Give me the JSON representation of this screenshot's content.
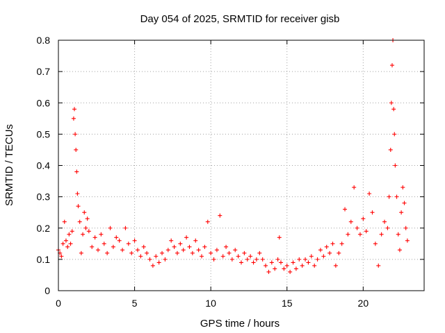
{
  "chart_data": {
    "type": "scatter",
    "title": "Day 054 of 2025, SRMTID for receiver gisb",
    "xlabel": "GPS time / hours",
    "ylabel": "SRMTID / TECUs",
    "xlim": [
      0,
      24
    ],
    "ylim": [
      0,
      0.8
    ],
    "x_ticks": [
      0,
      5,
      10,
      15,
      20
    ],
    "x_tick_labels": [
      "0",
      "5",
      "10",
      "15",
      "20"
    ],
    "y_ticks": [
      0,
      0.1,
      0.2,
      0.3,
      0.4,
      0.5,
      0.6,
      0.7,
      0.8
    ],
    "y_tick_labels": [
      "0",
      "0.1",
      "0.2",
      "0.3",
      "0.4",
      "0.5",
      "0.6",
      "0.7",
      "0.8"
    ],
    "grid": true,
    "marker": "plus",
    "color": "#ff0000",
    "series": [
      {
        "name": "SRMTID",
        "points": [
          [
            0.0,
            0.13
          ],
          [
            0.1,
            0.12
          ],
          [
            0.2,
            0.11
          ],
          [
            0.3,
            0.15
          ],
          [
            0.4,
            0.22
          ],
          [
            0.5,
            0.16
          ],
          [
            0.6,
            0.14
          ],
          [
            0.7,
            0.18
          ],
          [
            0.8,
            0.15
          ],
          [
            0.9,
            0.19
          ],
          [
            1.0,
            0.55
          ],
          [
            1.05,
            0.58
          ],
          [
            1.1,
            0.5
          ],
          [
            1.15,
            0.45
          ],
          [
            1.2,
            0.38
          ],
          [
            1.25,
            0.31
          ],
          [
            1.3,
            0.27
          ],
          [
            1.4,
            0.22
          ],
          [
            1.5,
            0.12
          ],
          [
            1.6,
            0.18
          ],
          [
            1.7,
            0.25
          ],
          [
            1.8,
            0.2
          ],
          [
            1.9,
            0.23
          ],
          [
            2.0,
            0.19
          ],
          [
            2.2,
            0.14
          ],
          [
            2.4,
            0.17
          ],
          [
            2.6,
            0.13
          ],
          [
            2.8,
            0.18
          ],
          [
            3.0,
            0.15
          ],
          [
            3.2,
            0.12
          ],
          [
            3.4,
            0.2
          ],
          [
            3.6,
            0.14
          ],
          [
            3.8,
            0.17
          ],
          [
            4.0,
            0.16
          ],
          [
            4.2,
            0.13
          ],
          [
            4.4,
            0.2
          ],
          [
            4.6,
            0.15
          ],
          [
            4.8,
            0.12
          ],
          [
            5.0,
            0.16
          ],
          [
            5.2,
            0.13
          ],
          [
            5.4,
            0.11
          ],
          [
            5.6,
            0.14
          ],
          [
            5.8,
            0.12
          ],
          [
            6.0,
            0.1
          ],
          [
            6.2,
            0.08
          ],
          [
            6.4,
            0.11
          ],
          [
            6.6,
            0.09
          ],
          [
            6.8,
            0.12
          ],
          [
            7.0,
            0.1
          ],
          [
            7.2,
            0.13
          ],
          [
            7.4,
            0.16
          ],
          [
            7.6,
            0.14
          ],
          [
            7.8,
            0.12
          ],
          [
            8.0,
            0.15
          ],
          [
            8.2,
            0.13
          ],
          [
            8.4,
            0.17
          ],
          [
            8.6,
            0.14
          ],
          [
            8.8,
            0.12
          ],
          [
            9.0,
            0.16
          ],
          [
            9.2,
            0.13
          ],
          [
            9.4,
            0.11
          ],
          [
            9.6,
            0.14
          ],
          [
            9.8,
            0.22
          ],
          [
            10.0,
            0.12
          ],
          [
            10.2,
            0.1
          ],
          [
            10.4,
            0.13
          ],
          [
            10.6,
            0.24
          ],
          [
            10.8,
            0.11
          ],
          [
            11.0,
            0.14
          ],
          [
            11.2,
            0.12
          ],
          [
            11.4,
            0.1
          ],
          [
            11.6,
            0.13
          ],
          [
            11.8,
            0.11
          ],
          [
            12.0,
            0.09
          ],
          [
            12.2,
            0.12
          ],
          [
            12.4,
            0.1
          ],
          [
            12.6,
            0.11
          ],
          [
            12.8,
            0.09
          ],
          [
            13.0,
            0.1
          ],
          [
            13.2,
            0.12
          ],
          [
            13.4,
            0.1
          ],
          [
            13.6,
            0.08
          ],
          [
            13.8,
            0.06
          ],
          [
            14.0,
            0.09
          ],
          [
            14.2,
            0.07
          ],
          [
            14.4,
            0.1
          ],
          [
            14.5,
            0.17
          ],
          [
            14.6,
            0.09
          ],
          [
            14.8,
            0.07
          ],
          [
            15.0,
            0.08
          ],
          [
            15.2,
            0.06
          ],
          [
            15.4,
            0.09
          ],
          [
            15.6,
            0.07
          ],
          [
            15.8,
            0.1
          ],
          [
            16.0,
            0.08
          ],
          [
            16.2,
            0.1
          ],
          [
            16.4,
            0.09
          ],
          [
            16.6,
            0.11
          ],
          [
            16.8,
            0.08
          ],
          [
            17.0,
            0.1
          ],
          [
            17.2,
            0.13
          ],
          [
            17.4,
            0.11
          ],
          [
            17.6,
            0.14
          ],
          [
            17.8,
            0.12
          ],
          [
            18.0,
            0.15
          ],
          [
            18.2,
            0.08
          ],
          [
            18.4,
            0.12
          ],
          [
            18.6,
            0.15
          ],
          [
            18.8,
            0.26
          ],
          [
            19.0,
            0.18
          ],
          [
            19.2,
            0.22
          ],
          [
            19.4,
            0.33
          ],
          [
            19.6,
            0.2
          ],
          [
            19.8,
            0.18
          ],
          [
            20.0,
            0.23
          ],
          [
            20.2,
            0.19
          ],
          [
            20.4,
            0.31
          ],
          [
            20.6,
            0.25
          ],
          [
            20.8,
            0.15
          ],
          [
            21.0,
            0.08
          ],
          [
            21.2,
            0.18
          ],
          [
            21.4,
            0.22
          ],
          [
            21.6,
            0.2
          ],
          [
            21.7,
            0.3
          ],
          [
            21.8,
            0.45
          ],
          [
            21.85,
            0.6
          ],
          [
            21.9,
            0.72
          ],
          [
            21.95,
            0.8
          ],
          [
            22.0,
            0.58
          ],
          [
            22.05,
            0.5
          ],
          [
            22.1,
            0.4
          ],
          [
            22.2,
            0.3
          ],
          [
            22.3,
            0.18
          ],
          [
            22.4,
            0.13
          ],
          [
            22.5,
            0.25
          ],
          [
            22.6,
            0.33
          ],
          [
            22.7,
            0.28
          ],
          [
            22.8,
            0.2
          ],
          [
            22.9,
            0.16
          ]
        ]
      }
    ]
  }
}
